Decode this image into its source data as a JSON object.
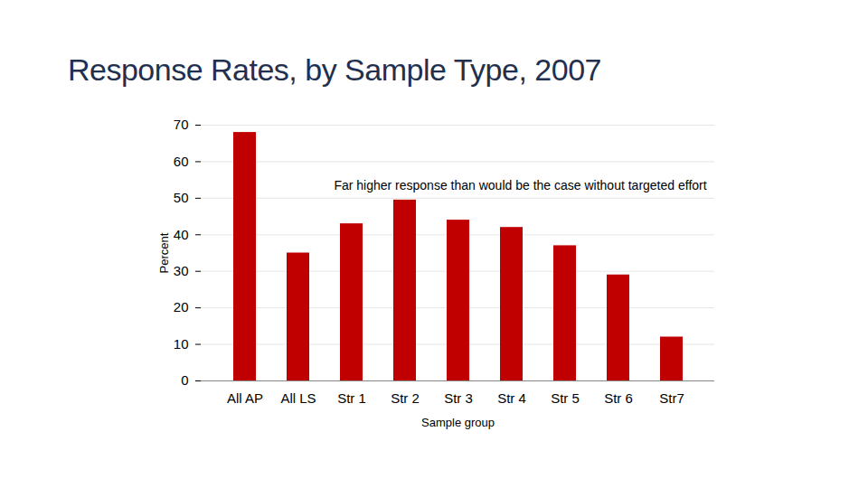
{
  "chart_data": {
    "type": "bar",
    "title": "Response Rates, by Sample Type, 2007",
    "categories": [
      "All AP",
      "All LS",
      "Str 1",
      "Str 2",
      "Str 3",
      "Str 4",
      "Str 5",
      "Str 6",
      "Str7"
    ],
    "values": [
      68,
      35,
      43,
      49.5,
      44,
      42,
      37,
      29,
      12
    ],
    "color": "#c00000",
    "x_label": "Sample group",
    "y_label": "Percent",
    "annotation": "Far higher response than would be the case without targeted effort",
    "ylim": [
      0,
      70
    ],
    "yticks": [
      0,
      10,
      20,
      30,
      40,
      50,
      60,
      70
    ],
    "grid": true
  }
}
